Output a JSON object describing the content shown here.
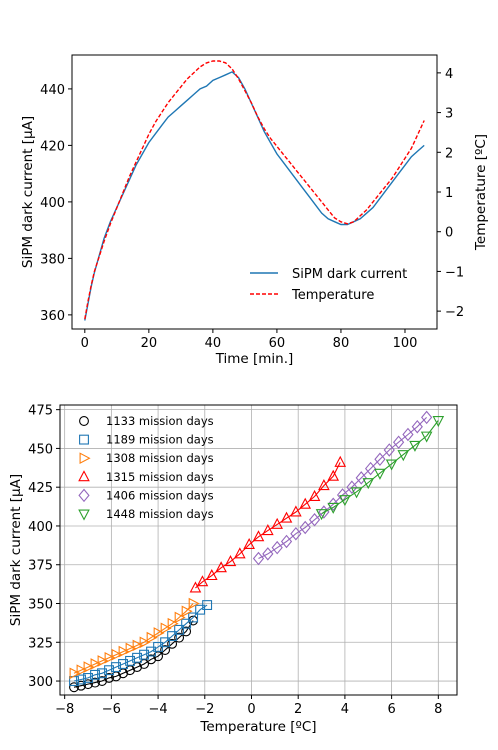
{
  "chart_data": [
    {
      "type": "line",
      "xlabel": "Time [min.]",
      "ylabel": "SiPM dark current [$\\mu$A]",
      "ylabel_display": "SiPM dark current [μA]",
      "y2label": "Temperature [ºC]",
      "xlim": [
        -4,
        110
      ],
      "ylim": [
        355,
        452
      ],
      "y2lim": [
        -2.45,
        4.45
      ],
      "xticks": [
        "0",
        "20",
        "40",
        "60",
        "80",
        "100"
      ],
      "yticks": [
        "360",
        "380",
        "400",
        "420",
        "440"
      ],
      "y2ticks": [
        "−2",
        "−1",
        "0",
        "1",
        "2",
        "3",
        "4"
      ],
      "legend_position": "lower-right",
      "series": [
        {
          "name": "SiPM dark current",
          "axis": "left",
          "color": "#1f77b4",
          "style": "solid",
          "x": [
            0,
            1,
            2,
            3,
            4,
            5,
            6,
            8,
            10,
            12,
            14,
            16,
            18,
            20,
            22,
            24,
            26,
            28,
            30,
            32,
            34,
            36,
            38,
            40,
            42,
            44,
            46,
            48,
            50,
            52,
            54,
            56,
            58,
            60,
            62,
            64,
            66,
            68,
            70,
            72,
            74,
            76,
            78,
            80,
            82,
            84,
            86,
            88,
            90,
            92,
            94,
            96,
            98,
            100,
            102,
            104,
            106
          ],
          "y": [
            358,
            364,
            370,
            375,
            379,
            383,
            387,
            393,
            398,
            403,
            408,
            413,
            417,
            421,
            424,
            427,
            430,
            432,
            434,
            436,
            438,
            440,
            441,
            443,
            444,
            445,
            446,
            444,
            440,
            435,
            430,
            425,
            421,
            417,
            414,
            411,
            408,
            405,
            402,
            399,
            396,
            394,
            393,
            392,
            392,
            393,
            394,
            396,
            398,
            401,
            404,
            407,
            410,
            413,
            416,
            418,
            420
          ]
        },
        {
          "name": "Temperature",
          "axis": "right",
          "color": "#ff0000",
          "style": "dashed",
          "x": [
            0,
            1,
            2,
            3,
            4,
            5,
            6,
            8,
            10,
            12,
            14,
            16,
            18,
            20,
            22,
            24,
            26,
            28,
            30,
            32,
            34,
            36,
            38,
            40,
            42,
            44,
            46,
            48,
            50,
            52,
            54,
            56,
            58,
            60,
            62,
            64,
            66,
            68,
            70,
            72,
            74,
            76,
            78,
            80,
            82,
            84,
            86,
            88,
            90,
            92,
            94,
            96,
            98,
            100,
            102,
            104,
            106
          ],
          "y": [
            -2.2,
            -1.75,
            -1.35,
            -1.0,
            -0.75,
            -0.5,
            -0.25,
            0.2,
            0.6,
            1.0,
            1.4,
            1.75,
            2.1,
            2.45,
            2.75,
            3.0,
            3.25,
            3.45,
            3.65,
            3.85,
            4.0,
            4.15,
            4.25,
            4.3,
            4.3,
            4.25,
            4.1,
            3.85,
            3.55,
            3.25,
            2.9,
            2.6,
            2.35,
            2.15,
            1.95,
            1.75,
            1.55,
            1.35,
            1.15,
            0.95,
            0.75,
            0.55,
            0.35,
            0.25,
            0.2,
            0.25,
            0.4,
            0.55,
            0.75,
            0.95,
            1.15,
            1.35,
            1.6,
            1.85,
            2.1,
            2.45,
            2.8
          ]
        }
      ]
    },
    {
      "type": "scatter",
      "xlabel": "Temperature [ºC]",
      "ylabel": "SiPM dark current [$\\mu$A]",
      "ylabel_display": "SiPM dark current [μA]",
      "xlim": [
        -8.2,
        8.8
      ],
      "ylim": [
        291,
        478
      ],
      "xticks": [
        "−8",
        "−6",
        "−4",
        "−2",
        "0",
        "2",
        "4",
        "6",
        "8"
      ],
      "yticks": [
        "300",
        "325",
        "350",
        "375",
        "400",
        "425",
        "450",
        "475"
      ],
      "grid": true,
      "legend_position": "upper-left",
      "series": [
        {
          "name": "1133 mission days",
          "marker": "circle",
          "color": "#000000",
          "x": [
            -7.6,
            -7.3,
            -7.0,
            -6.7,
            -6.4,
            -6.1,
            -5.8,
            -5.5,
            -5.2,
            -4.9,
            -4.6,
            -4.3,
            -4.0,
            -3.7,
            -3.4,
            -3.1,
            -2.8,
            -2.5
          ],
          "y": [
            296,
            297,
            298,
            299,
            300,
            302,
            303,
            305,
            307,
            309,
            311,
            314,
            316,
            320,
            324,
            328,
            332,
            339
          ]
        },
        {
          "name": "1189 mission days",
          "marker": "square",
          "color": "#1f77b4",
          "x": [
            -7.6,
            -7.3,
            -7.0,
            -6.7,
            -6.4,
            -6.1,
            -5.8,
            -5.5,
            -5.2,
            -4.9,
            -4.6,
            -4.3,
            -4.0,
            -3.7,
            -3.4,
            -3.1,
            -2.8,
            -2.5,
            -2.2,
            -1.9
          ],
          "y": [
            300,
            301,
            302,
            304,
            305,
            307,
            309,
            311,
            313,
            315,
            317,
            319,
            322,
            325,
            329,
            333,
            337,
            341,
            346,
            349
          ]
        },
        {
          "name": "1308 mission days",
          "marker": "triangle-right",
          "color": "#ff7f0e",
          "x": [
            -7.6,
            -7.3,
            -7.0,
            -6.7,
            -6.4,
            -6.1,
            -5.8,
            -5.5,
            -5.2,
            -4.9,
            -4.6,
            -4.3,
            -4.0,
            -3.7,
            -3.4,
            -3.1,
            -2.8,
            -2.5
          ],
          "y": [
            305,
            307,
            309,
            311,
            313,
            315,
            317,
            319,
            321,
            323,
            325,
            328,
            331,
            334,
            337,
            341,
            345,
            350
          ]
        },
        {
          "name": "1315 mission days",
          "marker": "triangle-up",
          "color": "#ff0000",
          "x": [
            -2.4,
            -2.1,
            -1.7,
            -1.3,
            -0.9,
            -0.5,
            -0.1,
            0.3,
            0.7,
            1.1,
            1.5,
            1.9,
            2.3,
            2.7,
            3.1,
            3.5,
            3.8
          ],
          "y": [
            360,
            364,
            368,
            373,
            377,
            382,
            388,
            393,
            397,
            401,
            405,
            409,
            414,
            419,
            426,
            432,
            441
          ]
        },
        {
          "name": "1406 mission days",
          "marker": "diamond",
          "color": "#9467bd",
          "x": [
            0.3,
            0.7,
            1.1,
            1.5,
            1.9,
            2.3,
            2.7,
            3.1,
            3.5,
            3.9,
            4.3,
            4.7,
            5.1,
            5.5,
            5.9,
            6.3,
            6.7,
            7.1,
            7.5
          ],
          "y": [
            379,
            382,
            386,
            390,
            395,
            399,
            404,
            409,
            414,
            420,
            425,
            431,
            437,
            443,
            449,
            454,
            459,
            464,
            470
          ]
        },
        {
          "name": "1448 mission days",
          "marker": "triangle-down",
          "color": "#2ca02c",
          "x": [
            3.0,
            3.5,
            4.0,
            4.5,
            5.0,
            5.5,
            6.0,
            6.5,
            7.0,
            7.5,
            8.0
          ],
          "y": [
            408,
            412,
            417,
            422,
            428,
            434,
            440,
            446,
            452,
            458,
            468
          ]
        }
      ]
    }
  ]
}
